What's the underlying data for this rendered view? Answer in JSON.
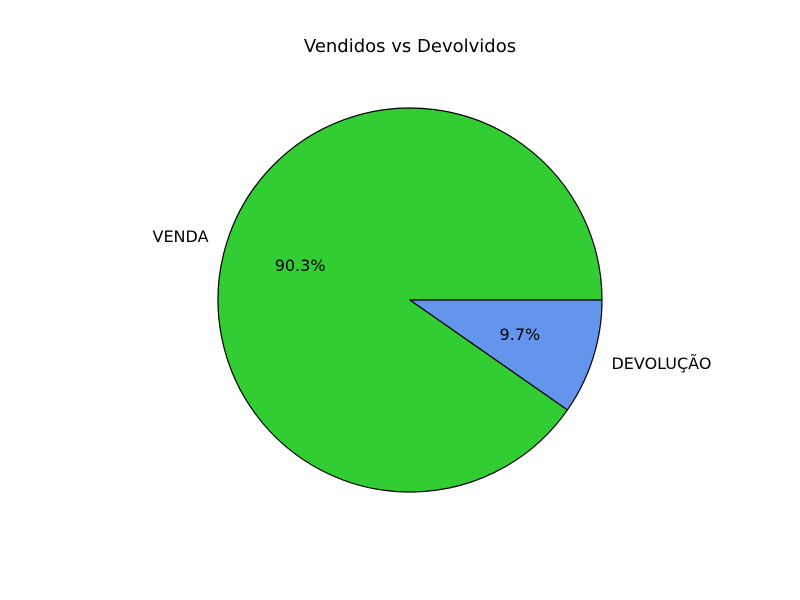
{
  "chart_data": {
    "type": "pie",
    "title": "Vendidos vs Devolvidos",
    "categories": [
      "VENDA",
      "DEVOLUÇÃO"
    ],
    "values": [
      90.3,
      9.7
    ],
    "percent_labels": [
      "90.3%",
      "9.7%"
    ],
    "colors": [
      "#32cd32",
      "#6495ed"
    ],
    "edge_color": "#000000",
    "start_angle_deg": 0,
    "direction": "counterclockwise"
  }
}
